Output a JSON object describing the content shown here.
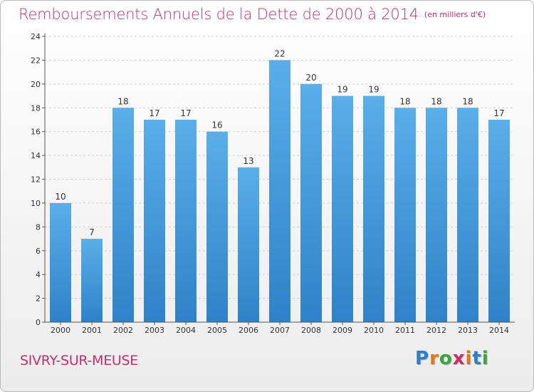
{
  "title": "Remboursements Annuels de la Dette de 2000 à 2014",
  "subtitle": "(en milliers d'€)",
  "commune": "SIVRY-SUR-MEUSE",
  "logo": {
    "letters": [
      "P",
      "r",
      "o",
      "x",
      "i",
      "t",
      "i"
    ],
    "colors": [
      "#2c7fd0",
      "#e07a10",
      "#3aa63a",
      "#c0306a",
      "#e07a10",
      "#2c7fd0",
      "#3aa63a"
    ]
  },
  "colors": {
    "bar": "#3f98dc",
    "bar_light": "#6bb6ea",
    "title": "#c0306a"
  },
  "chart_data": {
    "type": "bar",
    "title": "Remboursements Annuels de la Dette de 2000 à 2014",
    "xlabel": "",
    "ylabel": "",
    "unit": "en milliers d'€",
    "categories": [
      "2000",
      "2001",
      "2002",
      "2003",
      "2004",
      "2005",
      "2006",
      "2007",
      "2008",
      "2009",
      "2010",
      "2011",
      "2012",
      "2013",
      "2014"
    ],
    "values": [
      10,
      7,
      18,
      17,
      17,
      16,
      13,
      22,
      20,
      19,
      19,
      18,
      18,
      18,
      17
    ],
    "ylim": [
      0,
      24
    ],
    "yticks": [
      0,
      2,
      4,
      6,
      8,
      10,
      12,
      14,
      16,
      18,
      20,
      22,
      24
    ],
    "grid": true
  }
}
